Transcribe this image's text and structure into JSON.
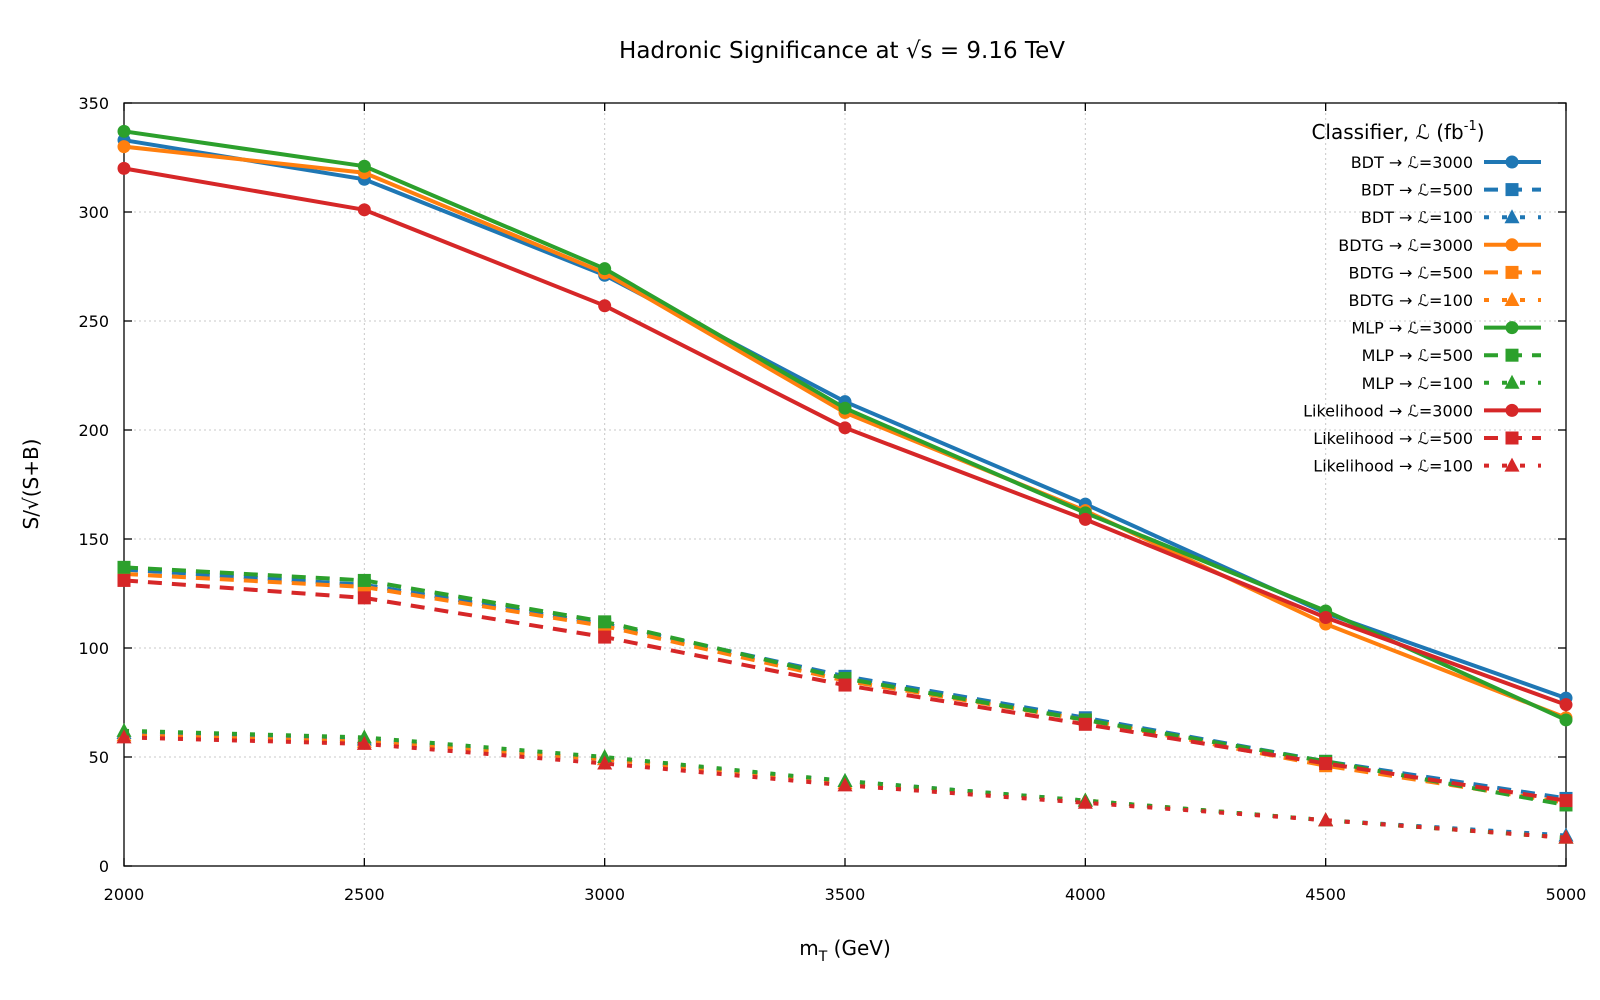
{
  "chart_data": {
    "type": "line",
    "title": "Hadronic Significance at √s = 9.16 TeV",
    "xlabel_main": "m",
    "xlabel_sub": "T",
    "xlabel_unit": " (GeV)",
    "ylabel": "S/√(S+B)",
    "xlim": [
      2000,
      5000
    ],
    "ylim": [
      0,
      350
    ],
    "x_ticks": [
      2000,
      2500,
      3000,
      3500,
      4000,
      4500,
      5000
    ],
    "y_ticks": [
      0,
      50,
      100,
      150,
      200,
      250,
      300,
      350
    ],
    "grid": true,
    "legend_position": "top-right",
    "legend_title_main": "Classifier, ℒ (fb",
    "legend_title_sup": "-1",
    "legend_title_end": ")",
    "x": [
      2000,
      2500,
      3000,
      3500,
      4000,
      4500,
      5000
    ],
    "series": [
      {
        "name": "BDT → ℒ=3000",
        "color": "#1f77b4",
        "style": "solid",
        "marker": "circle",
        "values": [
          333,
          315,
          271,
          213,
          166,
          116,
          77
        ]
      },
      {
        "name": "BDT → ℒ=500",
        "color": "#1f77b4",
        "style": "dashed",
        "marker": "square",
        "values": [
          136,
          129,
          111,
          87,
          68,
          48,
          31
        ]
      },
      {
        "name": "BDT → ℒ=100",
        "color": "#1f77b4",
        "style": "dotted",
        "marker": "triangle",
        "values": [
          61,
          58,
          49,
          39,
          30,
          21,
          14
        ]
      },
      {
        "name": "BDTG → ℒ=3000",
        "color": "#ff7f0e",
        "style": "solid",
        "marker": "circle",
        "values": [
          330,
          318,
          272,
          208,
          163,
          111,
          68
        ]
      },
      {
        "name": "BDTG → ℒ=500",
        "color": "#ff7f0e",
        "style": "dashed",
        "marker": "square",
        "values": [
          134,
          128,
          110,
          85,
          67,
          46,
          29
        ]
      },
      {
        "name": "BDTG → ℒ=100",
        "color": "#ff7f0e",
        "style": "dotted",
        "marker": "triangle",
        "values": [
          60,
          57,
          49,
          38,
          30,
          21,
          13
        ]
      },
      {
        "name": "MLP → ℒ=3000",
        "color": "#2ca02c",
        "style": "solid",
        "marker": "circle",
        "values": [
          337,
          321,
          274,
          210,
          162,
          117,
          67
        ]
      },
      {
        "name": "MLP → ℒ=500",
        "color": "#2ca02c",
        "style": "dashed",
        "marker": "square",
        "values": [
          137,
          131,
          112,
          86,
          67,
          48,
          28
        ]
      },
      {
        "name": "MLP → ℒ=100",
        "color": "#2ca02c",
        "style": "dotted",
        "marker": "triangle",
        "values": [
          62,
          59,
          50,
          39,
          30,
          21,
          13
        ]
      },
      {
        "name": "Likelihood → ℒ=3000",
        "color": "#d62728",
        "style": "solid",
        "marker": "circle",
        "values": [
          320,
          301,
          257,
          201,
          159,
          114,
          74
        ]
      },
      {
        "name": "Likelihood → ℒ=500",
        "color": "#d62728",
        "style": "dashed",
        "marker": "square",
        "values": [
          131,
          123,
          105,
          83,
          65,
          47,
          30
        ]
      },
      {
        "name": "Likelihood → ℒ=100",
        "color": "#d62728",
        "style": "dotted",
        "marker": "triangle",
        "values": [
          59,
          56,
          47,
          37,
          29,
          21,
          13
        ]
      }
    ]
  }
}
